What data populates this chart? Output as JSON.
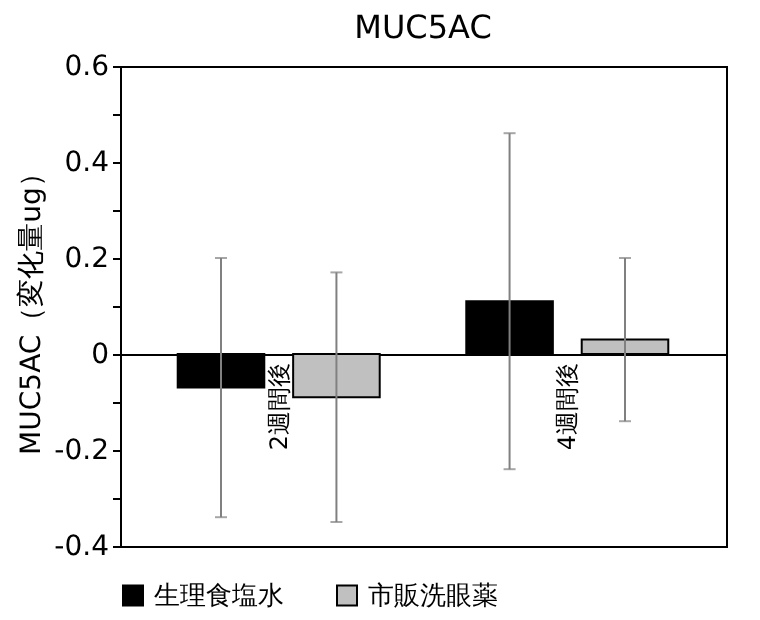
{
  "chart_data": {
    "type": "bar",
    "title": "MUC5AC",
    "ylabel": "MUC5AC（変化量ug）",
    "categories": [
      "2週間後",
      "4週間後"
    ],
    "series": [
      {
        "name": "生理食塩水",
        "color": "#000000",
        "values": [
          -0.07,
          0.11
        ],
        "errors": [
          [
            -0.34,
            0.2
          ],
          [
            -0.24,
            0.46
          ]
        ]
      },
      {
        "name": "市販洗眼薬",
        "color": "#c0c0c0",
        "values": [
          -0.09,
          0.03
        ],
        "errors": [
          [
            -0.35,
            0.17
          ],
          [
            -0.14,
            0.2
          ]
        ]
      }
    ],
    "ylim": [
      -0.4,
      0.6
    ],
    "yticks": [
      -0.4,
      {
        "value": -0.3,
        "label": null
      },
      -0.2,
      {
        "value": -0.1,
        "label": null
      },
      0,
      {
        "value": 0.1,
        "label": null
      },
      0.2,
      {
        "value": 0.3,
        "label": null
      },
      0.4,
      {
        "value": 0.5,
        "label": null
      },
      0.6
    ],
    "grid": false,
    "legend": "bottom"
  }
}
